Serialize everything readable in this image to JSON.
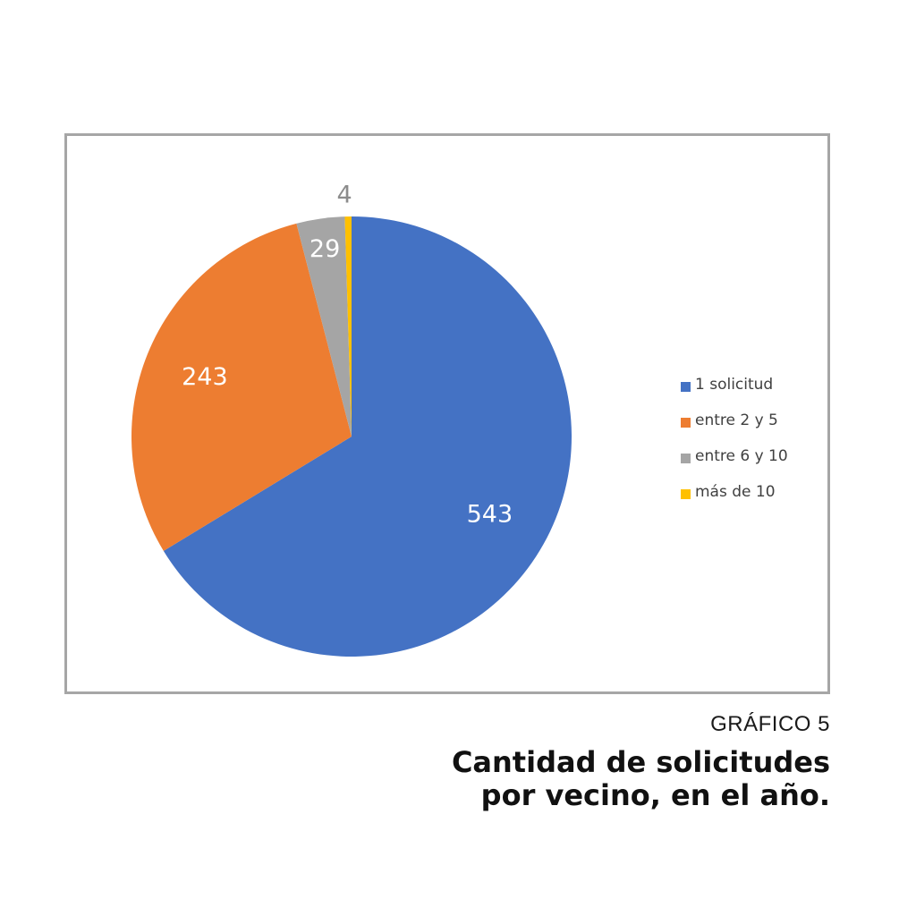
{
  "chart_data": {
    "type": "pie",
    "categories": [
      "1 solicitud",
      "entre 2 y 5",
      "entre 6 y 10",
      "más de 10"
    ],
    "values": [
      543,
      243,
      29,
      4
    ],
    "colors": [
      "#4472c4",
      "#ed7d31",
      "#a5a5a5",
      "#ffc000"
    ],
    "data_labels": [
      "543",
      "243",
      "29",
      "4"
    ],
    "legend_placement": "right",
    "title_lines": [
      "Cantidad de solicitudes",
      "por vecino, en el año."
    ],
    "chart_number": "GRÁFICO 5"
  }
}
